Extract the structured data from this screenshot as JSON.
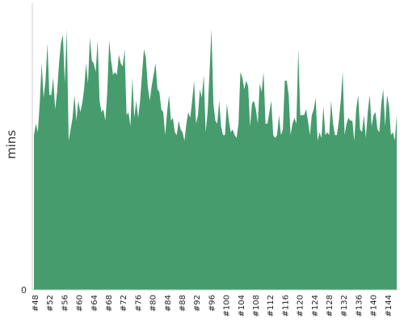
{
  "chart_data": {
    "type": "area",
    "title": "",
    "xlabel": "",
    "ylabel": "mins",
    "y_ticks_shown": [
      "0"
    ],
    "ylim": [
      0,
      100
    ],
    "grid": false,
    "legend": "none",
    "color": "#469c6d",
    "x_labels": [
      "#48",
      "#52",
      "#56",
      "#60",
      "#64",
      "#68",
      "#72",
      "#76",
      "#80",
      "#84",
      "#88",
      "#92",
      "#96",
      "#100",
      "#104",
      "#108",
      "#112",
      "#116",
      "#120",
      "#124",
      "#128",
      "#132",
      "#136",
      "#140",
      "#144"
    ],
    "x_label_every": 4,
    "builds_start": 47,
    "values": [
      54,
      58,
      55,
      65,
      79,
      67,
      73,
      86,
      68,
      68,
      74,
      63,
      69,
      79,
      86,
      89,
      72,
      91,
      52,
      56,
      60,
      68,
      59,
      66,
      62,
      65,
      70,
      79,
      72,
      88,
      80,
      79,
      76,
      87,
      66,
      62,
      63,
      59,
      69,
      87,
      80,
      75,
      76,
      75,
      82,
      79,
      78,
      84,
      61,
      62,
      57,
      74,
      60,
      66,
      60,
      66,
      75,
      84,
      81,
      71,
      66,
      71,
      75,
      79,
      70,
      69,
      63,
      62,
      54,
      62,
      68,
      59,
      60,
      55,
      54,
      59,
      56,
      55,
      52,
      58,
      62,
      60,
      66,
      73,
      58,
      61,
      70,
      67,
      75,
      55,
      62,
      76,
      91,
      65,
      59,
      58,
      66,
      57,
      54,
      54,
      65,
      59,
      55,
      56,
      54,
      53,
      58,
      76,
      74,
      70,
      73,
      71,
      57,
      65,
      66,
      63,
      58,
      72,
      69,
      76,
      58,
      58,
      62,
      66,
      54,
      53,
      54,
      61,
      54,
      56,
      73,
      73,
      68,
      54,
      58,
      60,
      58,
      84,
      61,
      61,
      61,
      63,
      59,
      54,
      61,
      63,
      67,
      52,
      55,
      53,
      64,
      54,
      55,
      54,
      66,
      58,
      54,
      54,
      59,
      66,
      76,
      54,
      58,
      60,
      59,
      59,
      52,
      63,
      68,
      56,
      55,
      61,
      53,
      62,
      68,
      57,
      61,
      62,
      56,
      55,
      65,
      70,
      57,
      68,
      64,
      54,
      55,
      52,
      61
    ]
  }
}
